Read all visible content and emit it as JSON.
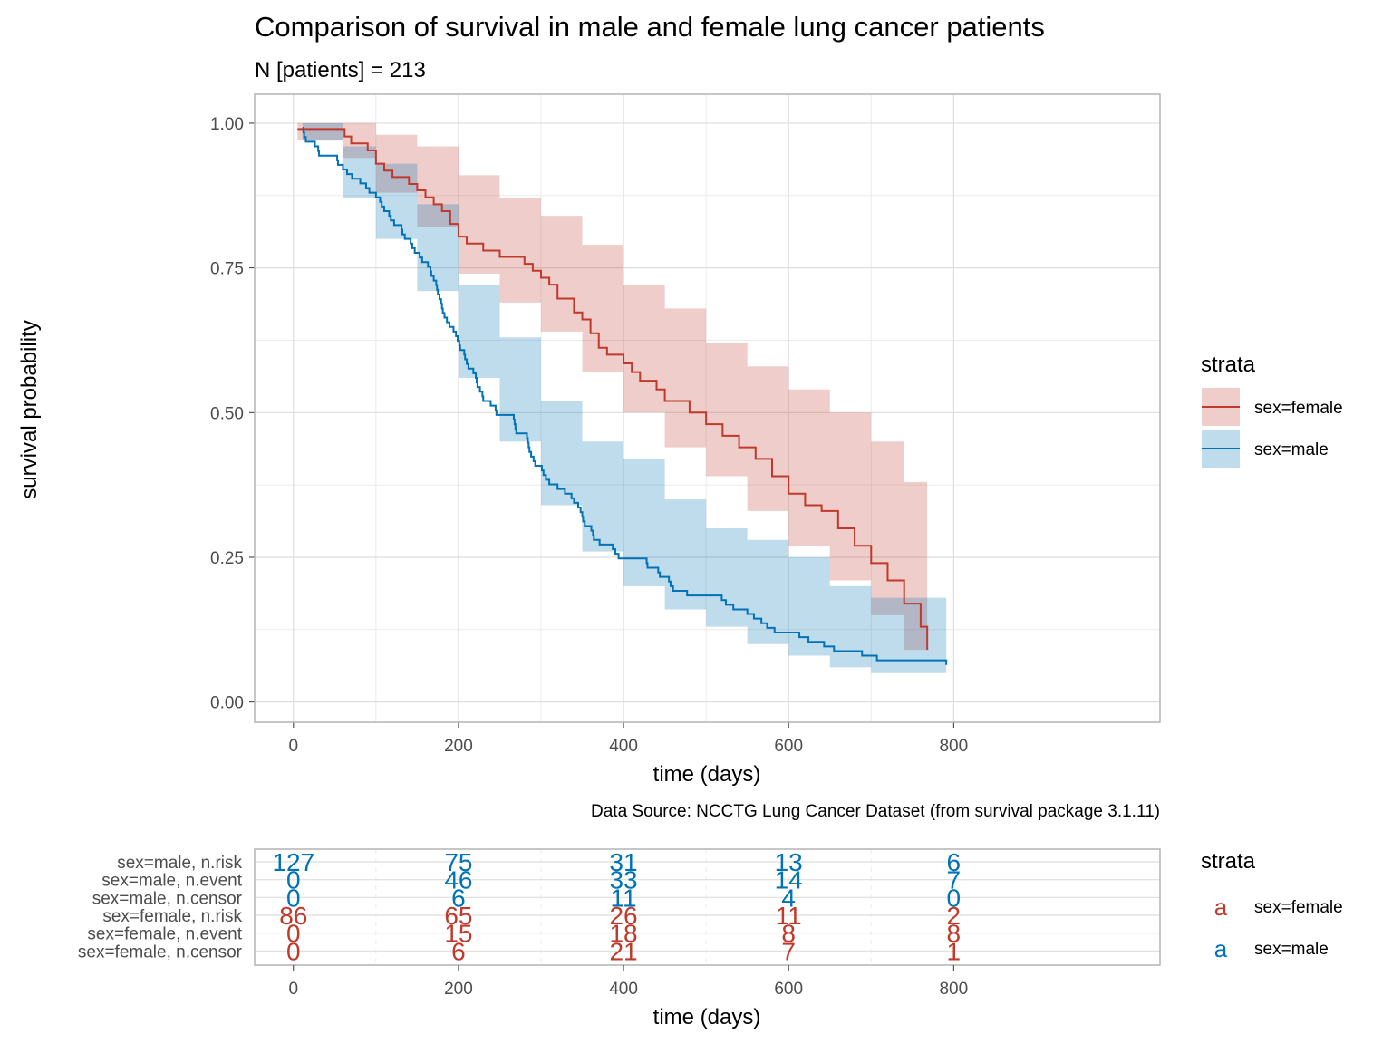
{
  "chart_data": [
    {
      "type": "line",
      "step": true,
      "title": "Comparison of survival in male and female lung cancer patients",
      "subtitle": "N [patients] = 213",
      "xlabel": "time (days)",
      "ylabel": "survival probability",
      "caption": "Data Source: NCCTG Lung Cancer Dataset (from survival package 3.1.11)",
      "xlim": [
        -47,
        1050
      ],
      "ylim": [
        -0.035,
        1.05
      ],
      "x_ticks": [
        0,
        200,
        400,
        600,
        800
      ],
      "y_ticks": [
        0,
        0.25,
        0.5,
        0.75,
        1.0
      ],
      "y_tick_labels": [
        "0.00",
        "0.25",
        "0.50",
        "0.75",
        "1.00"
      ],
      "grid": true,
      "legend": {
        "title": "strata",
        "position": "right",
        "entries": [
          "sex=female",
          "sex=male"
        ]
      },
      "series": [
        {
          "name": "sex=female",
          "color": "#c0392b",
          "points": [
            [
              5,
              0.99
            ],
            [
              60,
              0.99
            ],
            [
              62,
              0.977
            ],
            [
              70,
              0.965
            ],
            [
              90,
              0.953
            ],
            [
              100,
              0.93
            ],
            [
              110,
              0.918
            ],
            [
              120,
              0.907
            ],
            [
              140,
              0.895
            ],
            [
              150,
              0.884
            ],
            [
              160,
              0.872
            ],
            [
              170,
              0.86
            ],
            [
              180,
              0.848
            ],
            [
              190,
              0.826
            ],
            [
              200,
              0.804
            ],
            [
              210,
              0.792
            ],
            [
              230,
              0.78
            ],
            [
              250,
              0.769
            ],
            [
              280,
              0.757
            ],
            [
              290,
              0.745
            ],
            [
              300,
              0.733
            ],
            [
              310,
              0.721
            ],
            [
              320,
              0.697
            ],
            [
              340,
              0.673
            ],
            [
              350,
              0.661
            ],
            [
              360,
              0.637
            ],
            [
              370,
              0.612
            ],
            [
              380,
              0.6
            ],
            [
              400,
              0.585
            ],
            [
              410,
              0.57
            ],
            [
              420,
              0.555
            ],
            [
              440,
              0.54
            ],
            [
              450,
              0.52
            ],
            [
              480,
              0.5
            ],
            [
              500,
              0.48
            ],
            [
              520,
              0.46
            ],
            [
              540,
              0.44
            ],
            [
              560,
              0.42
            ],
            [
              580,
              0.39
            ],
            [
              600,
              0.36
            ],
            [
              620,
              0.34
            ],
            [
              640,
              0.33
            ],
            [
              660,
              0.3
            ],
            [
              680,
              0.27
            ],
            [
              700,
              0.24
            ],
            [
              720,
              0.21
            ],
            [
              740,
              0.17
            ],
            [
              760,
              0.13
            ],
            [
              768,
              0.09
            ]
          ],
          "lower": [
            [
              5,
              0.97
            ],
            [
              60,
              0.94
            ],
            [
              100,
              0.88
            ],
            [
              150,
              0.82
            ],
            [
              200,
              0.74
            ],
            [
              250,
              0.69
            ],
            [
              300,
              0.64
            ],
            [
              350,
              0.57
            ],
            [
              400,
              0.5
            ],
            [
              450,
              0.44
            ],
            [
              500,
              0.39
            ],
            [
              550,
              0.33
            ],
            [
              600,
              0.27
            ],
            [
              650,
              0.21
            ],
            [
              700,
              0.15
            ],
            [
              740,
              0.09
            ],
            [
              768,
              0.06
            ]
          ],
          "upper": [
            [
              5,
              1.0
            ],
            [
              60,
              1.0
            ],
            [
              100,
              0.98
            ],
            [
              150,
              0.96
            ],
            [
              200,
              0.91
            ],
            [
              250,
              0.87
            ],
            [
              300,
              0.84
            ],
            [
              350,
              0.79
            ],
            [
              400,
              0.72
            ],
            [
              450,
              0.68
            ],
            [
              500,
              0.62
            ],
            [
              550,
              0.58
            ],
            [
              600,
              0.54
            ],
            [
              650,
              0.5
            ],
            [
              700,
              0.45
            ],
            [
              740,
              0.38
            ],
            [
              768,
              0.31
            ]
          ]
        },
        {
          "name": "sex=male",
          "color": "#0072b5",
          "points": [
            [
              11,
              0.992
            ],
            [
              12,
              0.984
            ],
            [
              13,
              0.976
            ],
            [
              15,
              0.968
            ],
            [
              26,
              0.96
            ],
            [
              30,
              0.952
            ],
            [
              31,
              0.944
            ],
            [
              53,
              0.936
            ],
            [
              54,
              0.928
            ],
            [
              60,
              0.92
            ],
            [
              65,
              0.912
            ],
            [
              71,
              0.904
            ],
            [
              81,
              0.896
            ],
            [
              88,
              0.888
            ],
            [
              92,
              0.88
            ],
            [
              100,
              0.872
            ],
            [
              105,
              0.864
            ],
            [
              107,
              0.856
            ],
            [
              110,
              0.848
            ],
            [
              116,
              0.84
            ],
            [
              118,
              0.832
            ],
            [
              122,
              0.824
            ],
            [
              131,
              0.816
            ],
            [
              132,
              0.808
            ],
            [
              135,
              0.8
            ],
            [
              142,
              0.792
            ],
            [
              144,
              0.784
            ],
            [
              147,
              0.776
            ],
            [
              153,
              0.768
            ],
            [
              156,
              0.76
            ],
            [
              163,
              0.752
            ],
            [
              166,
              0.744
            ],
            [
              167,
              0.736
            ],
            [
              170,
              0.728
            ],
            [
              173,
              0.72
            ],
            [
              174,
              0.712
            ],
            [
              175,
              0.704
            ],
            [
              177,
              0.696
            ],
            [
              179,
              0.688
            ],
            [
              180,
              0.68
            ],
            [
              181,
              0.672
            ],
            [
              183,
              0.664
            ],
            [
              186,
              0.656
            ],
            [
              189,
              0.648
            ],
            [
              194,
              0.64
            ],
            [
              197,
              0.632
            ],
            [
              199,
              0.624
            ],
            [
              201,
              0.616
            ],
            [
              202,
              0.608
            ],
            [
              207,
              0.6
            ],
            [
              208,
              0.592
            ],
            [
              210,
              0.584
            ],
            [
              212,
              0.576
            ],
            [
              218,
              0.568
            ],
            [
              221,
              0.56
            ],
            [
              222,
              0.552
            ],
            [
              223,
              0.544
            ],
            [
              226,
              0.536
            ],
            [
              229,
              0.528
            ],
            [
              230,
              0.52
            ],
            [
              239,
              0.512
            ],
            [
              245,
              0.504
            ],
            [
              246,
              0.496
            ],
            [
              267,
              0.488
            ],
            [
              268,
              0.48
            ],
            [
              269,
              0.472
            ],
            [
              270,
              0.464
            ],
            [
              283,
              0.456
            ],
            [
              284,
              0.448
            ],
            [
              285,
              0.44
            ],
            [
              286,
              0.432
            ],
            [
              288,
              0.424
            ],
            [
              291,
              0.416
            ],
            [
              293,
              0.408
            ],
            [
              301,
              0.4
            ],
            [
              303,
              0.392
            ],
            [
              306,
              0.384
            ],
            [
              310,
              0.376
            ],
            [
              320,
              0.368
            ],
            [
              329,
              0.36
            ],
            [
              337,
              0.352
            ],
            [
              340,
              0.344
            ],
            [
              345,
              0.336
            ],
            [
              348,
              0.328
            ],
            [
              350,
              0.32
            ],
            [
              351,
              0.312
            ],
            [
              353,
              0.304
            ],
            [
              361,
              0.296
            ],
            [
              363,
              0.288
            ],
            [
              364,
              0.28
            ],
            [
              371,
              0.272
            ],
            [
              387,
              0.264
            ],
            [
              390,
              0.256
            ],
            [
              394,
              0.248
            ],
            [
              428,
              0.24
            ],
            [
              429,
              0.232
            ],
            [
              442,
              0.224
            ],
            [
              444,
              0.216
            ],
            [
              455,
              0.208
            ],
            [
              457,
              0.2
            ],
            [
              460,
              0.192
            ],
            [
              477,
              0.184
            ],
            [
              519,
              0.176
            ],
            [
              524,
              0.168
            ],
            [
              533,
              0.16
            ],
            [
              550,
              0.152
            ],
            [
              558,
              0.144
            ],
            [
              567,
              0.136
            ],
            [
              574,
              0.128
            ],
            [
              583,
              0.12
            ],
            [
              613,
              0.112
            ],
            [
              624,
              0.104
            ],
            [
              643,
              0.096
            ],
            [
              655,
              0.088
            ],
            [
              689,
              0.08
            ],
            [
              707,
              0.072
            ],
            [
              791,
              0.064
            ]
          ],
          "lower": [
            [
              11,
              0.97
            ],
            [
              60,
              0.87
            ],
            [
              100,
              0.8
            ],
            [
              150,
              0.71
            ],
            [
              200,
              0.56
            ],
            [
              250,
              0.45
            ],
            [
              300,
              0.34
            ],
            [
              350,
              0.26
            ],
            [
              400,
              0.2
            ],
            [
              450,
              0.16
            ],
            [
              500,
              0.13
            ],
            [
              550,
              0.1
            ],
            [
              600,
              0.08
            ],
            [
              650,
              0.06
            ],
            [
              700,
              0.05
            ],
            [
              791,
              0.04
            ]
          ],
          "upper": [
            [
              11,
              1.0
            ],
            [
              60,
              0.96
            ],
            [
              100,
              0.93
            ],
            [
              150,
              0.86
            ],
            [
              200,
              0.72
            ],
            [
              250,
              0.63
            ],
            [
              300,
              0.52
            ],
            [
              350,
              0.45
            ],
            [
              400,
              0.42
            ],
            [
              450,
              0.35
            ],
            [
              500,
              0.3
            ],
            [
              550,
              0.28
            ],
            [
              600,
              0.25
            ],
            [
              650,
              0.2
            ],
            [
              700,
              0.18
            ],
            [
              791,
              0.17
            ]
          ]
        }
      ]
    },
    {
      "type": "table",
      "xlabel": "time (days)",
      "x_ticks": [
        0,
        200,
        400,
        600,
        800
      ],
      "legend": {
        "title": "strata",
        "entries": [
          {
            "glyph": "a",
            "label": "sex=female",
            "color": "#c0392b"
          },
          {
            "glyph": "a",
            "label": "sex=male",
            "color": "#0072b5"
          }
        ]
      },
      "rows": [
        {
          "label": "sex=male, n.risk",
          "color": "#0072b5",
          "values": [
            127,
            75,
            31,
            13,
            6
          ]
        },
        {
          "label": "sex=male, n.event",
          "color": "#0072b5",
          "values": [
            0,
            46,
            33,
            14,
            7
          ]
        },
        {
          "label": "sex=male, n.censor",
          "color": "#0072b5",
          "values": [
            0,
            6,
            11,
            4,
            0
          ]
        },
        {
          "label": "sex=female, n.risk",
          "color": "#c0392b",
          "values": [
            86,
            65,
            26,
            11,
            2
          ]
        },
        {
          "label": "sex=female, n.event",
          "color": "#c0392b",
          "values": [
            0,
            15,
            18,
            8,
            8
          ]
        },
        {
          "label": "sex=female, n.censor",
          "color": "#c0392b",
          "values": [
            0,
            6,
            21,
            7,
            1
          ]
        }
      ]
    }
  ]
}
